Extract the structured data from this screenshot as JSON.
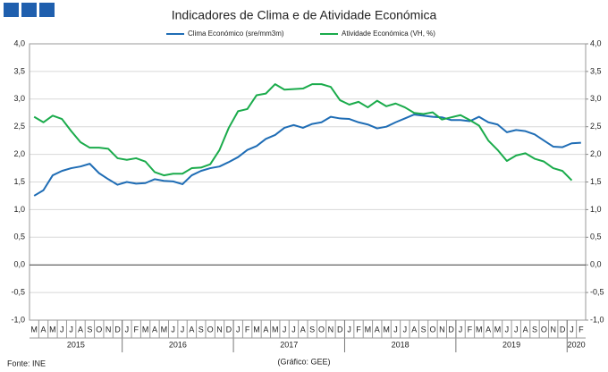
{
  "chart_data": {
    "type": "line",
    "title": "Indicadores de Clima e de Atividade Económica",
    "source": "Fonte: INE",
    "credit": "(Gráfico: GEE)",
    "categories": [
      "M",
      "A",
      "M",
      "J",
      "J",
      "A",
      "S",
      "O",
      "N",
      "D",
      "J",
      "F",
      "M",
      "A",
      "M",
      "J",
      "J",
      "A",
      "S",
      "O",
      "N",
      "D",
      "J",
      "F",
      "M",
      "A",
      "M",
      "J",
      "J",
      "A",
      "S",
      "O",
      "N",
      "D",
      "J",
      "F",
      "M",
      "A",
      "M",
      "J",
      "J",
      "A",
      "S",
      "O",
      "N",
      "D",
      "J",
      "F",
      "M",
      "A",
      "M",
      "J",
      "J",
      "A",
      "S",
      "O",
      "N",
      "D",
      "J",
      "F"
    ],
    "year_groups": [
      {
        "label": "2015",
        "size": 10
      },
      {
        "label": "2016",
        "size": 12
      },
      {
        "label": "2017",
        "size": 12
      },
      {
        "label": "2018",
        "size": 12
      },
      {
        "label": "2019",
        "size": 12
      },
      {
        "label": "2020",
        "size": 2
      }
    ],
    "series": [
      {
        "name": "Clima Económico (sre/mm3m)",
        "color": "#1f6db5",
        "axis": "y",
        "values": [
          1.25,
          1.35,
          1.62,
          1.7,
          1.75,
          1.78,
          1.83,
          1.66,
          1.55,
          1.45,
          1.5,
          1.47,
          1.48,
          1.55,
          1.52,
          1.51,
          1.46,
          1.62,
          1.7,
          1.75,
          1.78,
          1.86,
          1.95,
          2.08,
          2.15,
          2.28,
          2.35,
          2.48,
          2.53,
          2.48,
          2.55,
          2.58,
          2.68,
          2.65,
          2.64,
          2.58,
          2.54,
          2.47,
          2.5,
          2.58,
          2.65,
          2.72,
          2.7,
          2.68,
          2.67,
          2.62,
          2.62,
          2.6,
          2.68,
          2.58,
          2.54,
          2.4,
          2.44,
          2.42,
          2.36,
          2.25,
          2.14,
          2.13,
          2.2,
          2.21
        ]
      },
      {
        "name": "Atividade Económica (VH, %)",
        "color": "#1aab4b",
        "axis": "y",
        "values": [
          2.68,
          2.58,
          2.7,
          2.64,
          2.42,
          2.22,
          2.12,
          2.12,
          2.1,
          1.93,
          1.9,
          1.93,
          1.87,
          1.68,
          1.62,
          1.65,
          1.65,
          1.75,
          1.76,
          1.82,
          2.08,
          2.48,
          2.78,
          2.82,
          3.07,
          3.1,
          3.27,
          3.17,
          3.18,
          3.19,
          3.27,
          3.27,
          3.22,
          2.98,
          2.9,
          2.95,
          2.85,
          2.97,
          2.87,
          2.92,
          2.85,
          2.75,
          2.73,
          2.76,
          2.63,
          2.67,
          2.71,
          2.62,
          2.52,
          2.25,
          2.08,
          1.88,
          1.98,
          2.02,
          1.92,
          1.87,
          1.75,
          1.7,
          1.53,
          null
        ]
      }
    ],
    "ylim": [
      -1,
      4
    ],
    "yticks": [
      {
        "value": 4,
        "label": "4,0"
      },
      {
        "value": 3.5,
        "label": "3,5"
      },
      {
        "value": 3,
        "label": "3,0"
      },
      {
        "value": 2.5,
        "label": "2,5"
      },
      {
        "value": 2,
        "label": "2,0"
      },
      {
        "value": 1.5,
        "label": "1,5"
      },
      {
        "value": 1,
        "label": "1,0"
      },
      {
        "value": 0.5,
        "label": "0,5"
      },
      {
        "value": 0,
        "label": "0,0"
      },
      {
        "value": -0.5,
        "label": "-0,5"
      },
      {
        "value": -1,
        "label": "-1,0"
      }
    ],
    "y2lim": [
      -1,
      4
    ],
    "y2ticks": [
      {
        "value": 4,
        "label": "4,0"
      },
      {
        "value": 3.5,
        "label": "3,5"
      },
      {
        "value": 3,
        "label": "3,0"
      },
      {
        "value": 2.5,
        "label": "2,5"
      },
      {
        "value": 2,
        "label": "2,0"
      },
      {
        "value": 1.5,
        "label": "1,5"
      },
      {
        "value": 1,
        "label": "1,0"
      },
      {
        "value": 0.5,
        "label": "0,5"
      },
      {
        "value": 0,
        "label": "0,0"
      },
      {
        "value": -0.5,
        "label": "-0,5"
      },
      {
        "value": -1,
        "label": "-1,0"
      }
    ],
    "grid": true,
    "legend": "top"
  }
}
